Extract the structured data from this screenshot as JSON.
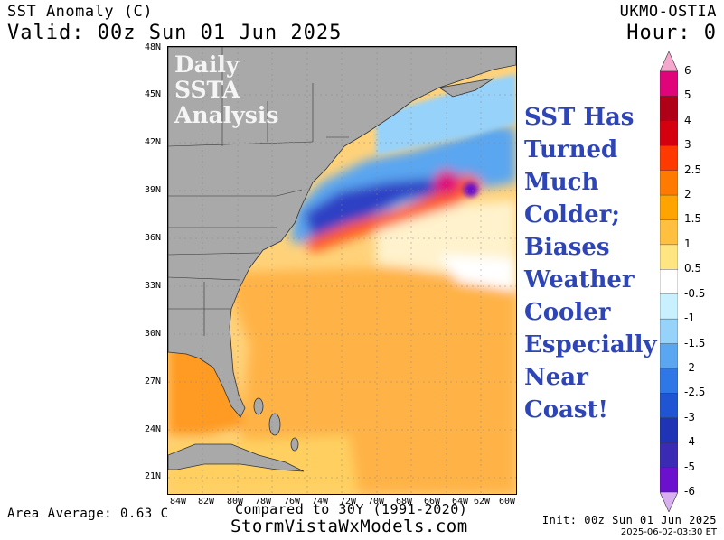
{
  "header": {
    "title": "SST Anomaly (C)",
    "valid": "Valid: 00z Sun 01 Jun 2025",
    "model": "UKMO-OSTIA",
    "hour": "Hour: 0"
  },
  "map": {
    "overlay_title_lines": [
      "Daily",
      "SSTA",
      "Analysis"
    ],
    "lat_labels": [
      "48N",
      "45N",
      "42N",
      "39N",
      "36N",
      "33N",
      "30N",
      "27N",
      "24N",
      "21N"
    ],
    "lon_labels": [
      "84W",
      "82W",
      "80W",
      "78W",
      "76W",
      "74W",
      "72W",
      "70W",
      "68W",
      "66W",
      "64W",
      "62W",
      "60W"
    ],
    "land_color": "#a9a9a9",
    "anomaly_fields": {
      "gulf_stream_max": "4 to 6",
      "shelf_waters": "-2.5 to -4",
      "subtropics": "1 to 2"
    }
  },
  "headline_lines": [
    "SST Has",
    "Turned",
    "Much",
    "Colder;",
    "Biases",
    "Weather",
    "Cooler",
    "Especially",
    "Near",
    "Coast!"
  ],
  "colorbar": {
    "labels": [
      "6",
      "5",
      "4",
      "3",
      "2.5",
      "2",
      "1.5",
      "1",
      "0.5",
      "-0.5",
      "-1",
      "-1.5",
      "-2",
      "-2.5",
      "-3",
      "-4",
      "-5",
      "-6"
    ],
    "colors": [
      "#e0047a",
      "#b00018",
      "#d40010",
      "#ff3a00",
      "#ff7a00",
      "#ffa300",
      "#ffc040",
      "#ffe680",
      "#ffffff",
      "#c8f0ff",
      "#96d2fa",
      "#5aa6f0",
      "#2f77e6",
      "#1f55d2",
      "#1e34b4",
      "#3a2ab4",
      "#6b10cc"
    ],
    "top_arrow": "#f4a8cc",
    "bottom_arrow": "#d8b0f0"
  },
  "footer": {
    "area_average": "Area Average: 0.63 C",
    "compared": "Compared to 30Y (1991-2020)",
    "site": "StormVistaWxModels.com",
    "init": "Init: 00z Sun 01 Jun 2025",
    "issued": "2025-06-02-03:30 ET"
  }
}
